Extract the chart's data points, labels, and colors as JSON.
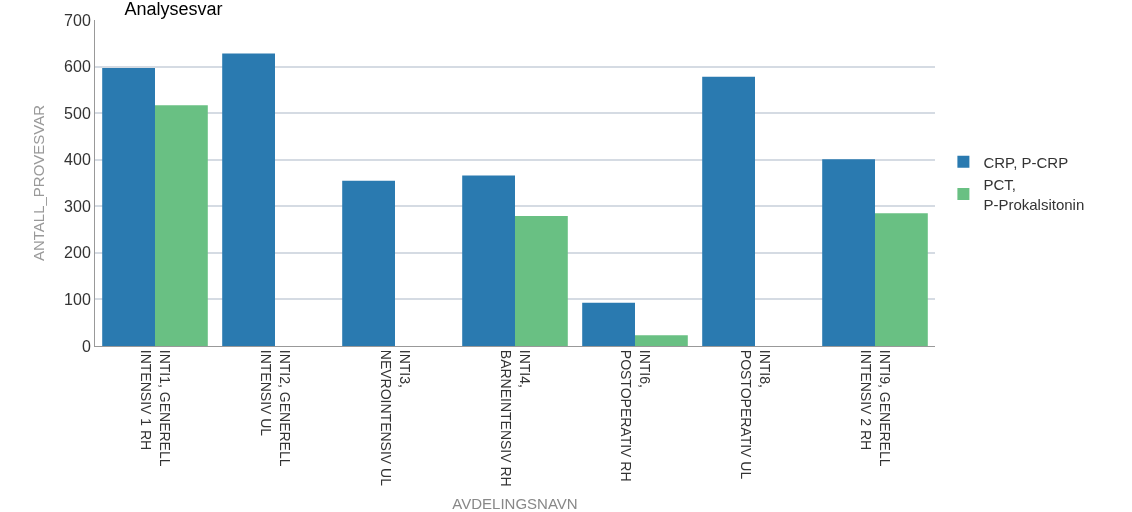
{
  "chart_data": {
    "type": "bar",
    "title": "Analysesvar",
    "xlabel": "AVDELINGSNAVN",
    "ylabel": "ANTALL_PROVESVAR",
    "categories": [
      "INTI1, GENERELL INTENSIV 1 RH",
      "INTI2, GENERELL INTENSIV UL",
      "INTI3, NEVROINTENSIV UL",
      "INTI4, BARNEINTENSIV RH",
      "INTI6, POSTOPERATIV RH",
      "INTI8, POSTOPERATIV UL",
      "INTI9, GENERELL INTENSIV 2 RH"
    ],
    "series": [
      {
        "name": "CRP, P-CRP",
        "color": "#2a7ab0",
        "values": [
          597,
          628,
          355,
          366,
          93,
          578,
          401
        ]
      },
      {
        "name": "PCT, P-Prokalsitonin",
        "color": "#69c083",
        "values": [
          517,
          null,
          null,
          279,
          23,
          null,
          285
        ]
      }
    ],
    "ylim": [
      0,
      700
    ],
    "yticks": [
      0,
      100,
      200,
      300,
      400,
      500,
      600,
      700
    ],
    "grid": "y",
    "legend": "right"
  }
}
